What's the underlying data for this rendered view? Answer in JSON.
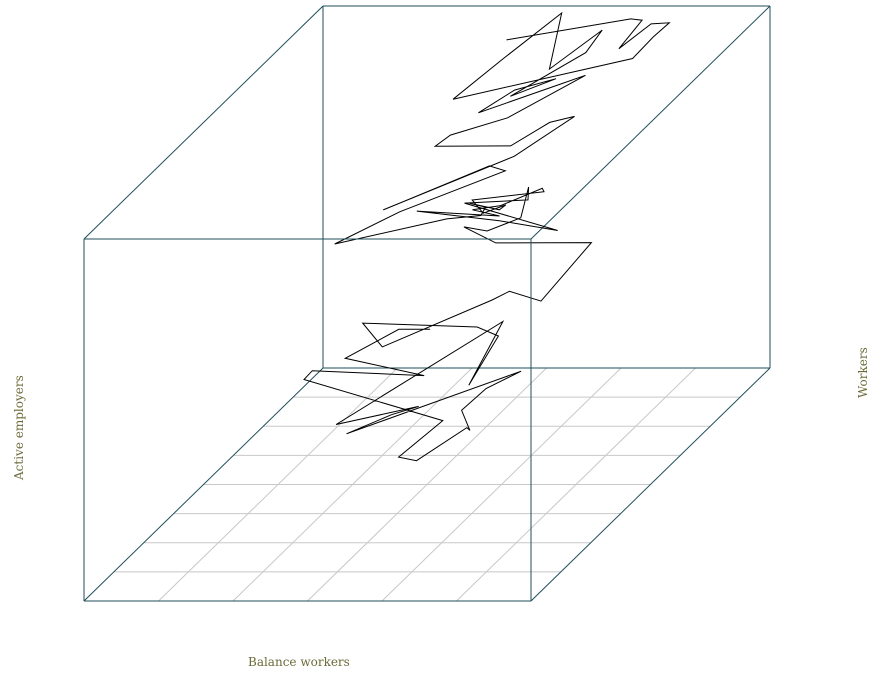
{
  "chart_data": {
    "type": "line",
    "projection": "3d",
    "xlabel": "Balance workers",
    "ylabel": "Active employers",
    "zlabel": "Workers",
    "grid": true,
    "box_color": "#1f4e5a",
    "grid_color": "#c8c8c8",
    "line_color": "#000000",
    "label_color": "#6b6b3a",
    "series": [
      {
        "points": [
          [
            0.4,
            0.7,
            0.3
          ],
          [
            0.33,
            0.7,
            0.3
          ],
          [
            0.21,
            0.7,
            0.22
          ],
          [
            0.36,
            0.75,
            0.14
          ],
          [
            0.19,
            0.6,
            0.25
          ],
          [
            0.15,
            0.64,
            0.2
          ],
          [
            0.53,
            0.51,
            0.17
          ],
          [
            0.49,
            0.4,
            0.14
          ],
          [
            0.53,
            0.4,
            0.13
          ],
          [
            0.6,
            0.48,
            0.17
          ],
          [
            0.58,
            0.53,
            0.13
          ],
          [
            0.54,
            0.57,
            0.16
          ],
          [
            0.52,
            0.71,
            0.13
          ],
          [
            0.55,
            0.8,
            0.12
          ],
          [
            0.32,
            0.5,
            0.14
          ],
          [
            0.41,
            0.52,
            0.18
          ],
          [
            0.46,
            0.54,
            0.19
          ],
          [
            0.35,
            0.4,
            0.23
          ],
          [
            0.52,
            0.78,
            0.27
          ],
          [
            0.54,
            0.6,
            0.21
          ],
          [
            0.51,
            0.78,
            0.23
          ],
          [
            0.5,
            0.71,
            0.3
          ],
          [
            0.26,
            0.68,
            0.33
          ],
          [
            0.4,
            0.5,
            0.38
          ],
          [
            0.48,
            0.81,
            0.31
          ],
          [
            0.54,
            0.77,
            0.36
          ],
          [
            0.6,
            0.79,
            0.32
          ],
          [
            0.67,
            0.87,
            0.43
          ],
          [
            0.44,
            0.9,
            0.41
          ],
          [
            0.39,
            0.86,
            0.48
          ],
          [
            0.41,
            0.92,
            0.43
          ],
          [
            0.48,
            0.93,
            0.46
          ],
          [
            0.46,
            1.0,
            0.5
          ],
          [
            0.48,
            0.96,
            0.49
          ],
          [
            0.37,
            0.9,
            0.52
          ],
          [
            0.6,
            0.86,
            0.47
          ],
          [
            0.48,
            0.84,
            0.51
          ],
          [
            0.29,
            0.85,
            0.53
          ],
          [
            0.47,
            0.86,
            0.51
          ],
          [
            0.42,
            0.84,
            0.54
          ],
          [
            0.44,
            0.92,
            0.5
          ],
          [
            0.56,
            0.87,
            0.58
          ],
          [
            0.58,
            0.84,
            0.59
          ],
          [
            0.43,
            0.82,
            0.58
          ],
          [
            0.46,
            0.81,
            0.55
          ],
          [
            0.5,
            0.83,
            0.56
          ],
          [
            0.48,
            0.84,
            0.54
          ],
          [
            0.44,
            0.79,
            0.59
          ],
          [
            0.46,
            0.82,
            0.56
          ],
          [
            0.46,
            0.8,
            0.55
          ],
          [
            0.4,
            0.77,
            0.56
          ],
          [
            0.24,
            0.6,
            0.6
          ],
          [
            0.37,
            0.63,
            0.67
          ],
          [
            0.52,
            0.79,
            0.68
          ],
          [
            0.49,
            0.78,
            0.7
          ],
          [
            0.37,
            0.56,
            0.72
          ],
          [
            0.54,
            0.79,
            0.72
          ],
          [
            0.6,
            0.93,
            0.74
          ],
          [
            0.55,
            0.92,
            0.73
          ],
          [
            0.5,
            0.85,
            0.71
          ],
          [
            0.39,
            0.74,
            0.78
          ],
          [
            0.44,
            0.71,
            0.83
          ],
          [
            0.52,
            0.8,
            0.82
          ],
          [
            0.63,
            0.92,
            0.86
          ],
          [
            0.57,
            0.93,
            0.83
          ],
          [
            0.46,
            0.79,
            0.84
          ],
          [
            0.53,
            0.81,
            0.89
          ],
          [
            0.58,
            0.89,
            0.87
          ],
          [
            0.51,
            0.83,
            0.86
          ],
          [
            0.62,
            0.94,
            0.91
          ],
          [
            0.63,
            0.99,
            0.94
          ],
          [
            0.56,
            0.9,
            0.89
          ],
          [
            0.55,
            0.97,
            1.0
          ],
          [
            0.49,
            0.83,
            0.96
          ],
          [
            0.43,
            0.74,
            0.91
          ],
          [
            0.73,
            0.93,
            0.9
          ],
          [
            0.76,
            0.96,
            0.94
          ],
          [
            0.78,
            0.99,
            0.96
          ],
          [
            0.75,
            0.97,
            0.97
          ],
          [
            0.71,
            0.91,
            0.94
          ],
          [
            0.73,
            0.97,
            0.98
          ],
          [
            0.71,
            0.96,
            0.99
          ],
          [
            0.48,
            0.87,
            0.99
          ]
        ]
      }
    ]
  }
}
